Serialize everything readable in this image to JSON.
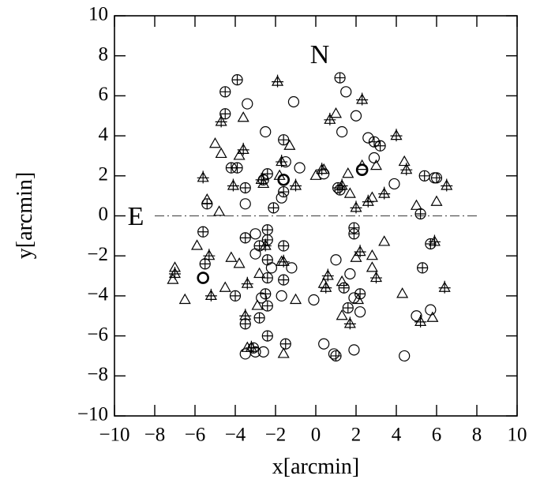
{
  "chart_data": {
    "type": "scatter",
    "x_label": "x[arcmin]",
    "y_label": "y[arcmin]",
    "annotations": [
      "N",
      "E"
    ],
    "xlim": [
      -10,
      10
    ],
    "ylim": [
      -10,
      10
    ],
    "xticks": [
      {
        "value": -10,
        "label": "−10"
      },
      {
        "value": -8,
        "label": "−8"
      },
      {
        "value": -6,
        "label": "−6"
      },
      {
        "value": -4,
        "label": "−4"
      },
      {
        "value": -2,
        "label": "−2"
      },
      0,
      2,
      4,
      6,
      8,
      10
    ],
    "yticks": [
      {
        "value": -10,
        "label": "−10"
      },
      {
        "value": -8,
        "label": "−8"
      },
      {
        "value": -6,
        "label": "−6"
      },
      {
        "value": -4,
        "label": "−4"
      },
      {
        "value": -2,
        "label": "−2"
      },
      0,
      2,
      4,
      6,
      8,
      10
    ],
    "grid": false,
    "reference_line": {
      "y": 0,
      "from": -8,
      "to": 8,
      "style": "dashdot",
      "color": "#555555"
    },
    "series": [
      {
        "marker": "circle-plus",
        "color": "#000000",
        "x": [
          -3.9,
          -4.5,
          1.2,
          -4.5,
          -1.6,
          -4.2,
          -3.9,
          -2.4,
          -2.6,
          -3.5,
          -1.6,
          1.2,
          1.1,
          2.9,
          -5.4,
          -2.1,
          -5.6,
          -3.5,
          -2.4,
          -2.4,
          -2.8,
          -1.6,
          -2.4,
          -2.4,
          -1.6,
          -2.5,
          -2.4,
          -4.0,
          -3.5,
          -2.8,
          -2.4,
          -1.5,
          -3.1,
          1.0,
          1.9,
          1.9,
          1.4,
          1.6,
          2.2,
          5.3,
          5.7,
          5.2,
          6.0,
          5.4,
          3.2,
          -5.5
        ],
        "y": [
          6.8,
          6.2,
          6.9,
          5.1,
          3.8,
          2.4,
          2.4,
          2.1,
          1.8,
          1.4,
          1.2,
          1.3,
          1.4,
          3.7,
          0.6,
          0.4,
          -0.8,
          -1.1,
          -0.7,
          -1.2,
          -1.5,
          -1.5,
          -2.2,
          -3.1,
          -3.2,
          -3.9,
          -4.5,
          -4.0,
          -5.4,
          -5.1,
          -6.0,
          -6.4,
          -6.6,
          -7.0,
          -0.9,
          -0.6,
          -3.6,
          -4.6,
          -3.9,
          -2.6,
          -1.4,
          0.1,
          1.9,
          2.0,
          3.5,
          -2.4
        ]
      },
      {
        "marker": "circle",
        "color": "#000000",
        "x": [
          -3.4,
          -1.1,
          1.5,
          2.0,
          1.3,
          2.6,
          -2.5,
          -0.8,
          -1.5,
          0.4,
          -1.7,
          -3.5,
          3.9,
          2.9,
          -3.0,
          -3.0,
          -2.2,
          -1.2,
          -2.7,
          -1.7,
          -3.0,
          -3.5,
          -2.6,
          0.4,
          0.9,
          1.9,
          -0.1,
          1.7,
          1.9,
          2.2,
          1.0,
          4.4,
          5.0,
          5.7,
          5.9
        ],
        "y": [
          5.6,
          5.7,
          6.2,
          5.0,
          4.2,
          3.9,
          4.2,
          2.4,
          2.7,
          2.1,
          0.9,
          0.6,
          1.6,
          2.9,
          -0.9,
          -1.9,
          -2.6,
          -2.6,
          -4.1,
          -4.0,
          -6.8,
          -6.9,
          -6.8,
          -6.4,
          -6.9,
          -6.7,
          -4.2,
          -2.9,
          -4.1,
          -4.8,
          -2.2,
          -7.0,
          -5.0,
          -4.7,
          1.9
        ]
      },
      {
        "marker": "circle-bold",
        "color": "#000000",
        "x": [
          -1.6,
          -5.6,
          2.3
        ],
        "y": [
          1.8,
          -3.1,
          2.3
        ]
      },
      {
        "marker": "triangle",
        "color": "#000000",
        "x": [
          -3.6,
          -5.0,
          -4.7,
          -3.8,
          -2.6,
          -1.3,
          -5.4,
          -4.8,
          -1.8,
          1.0,
          0.0,
          1.6,
          0.4,
          2.3,
          3.0,
          1.7,
          2.8,
          4.4,
          5.0,
          6.0,
          -4.2,
          -3.8,
          -5.9,
          -2.8,
          -4.5,
          -6.5,
          -7.1,
          -7.0,
          -2.9,
          -1.0,
          -1.7,
          -3.4,
          -1.6,
          0.4,
          1.3,
          2.0,
          2.8,
          2.8,
          3.4,
          1.3,
          4.3,
          5.8,
          2.1
        ],
        "y": [
          4.9,
          3.6,
          3.1,
          3.0,
          1.6,
          3.5,
          0.8,
          0.2,
          2.0,
          5.1,
          2.0,
          2.1,
          2.3,
          2.5,
          2.5,
          1.1,
          0.9,
          2.7,
          0.5,
          0.7,
          -2.1,
          -2.4,
          -1.5,
          -2.9,
          -3.6,
          -4.2,
          -3.2,
          -2.6,
          -4.5,
          -4.2,
          -2.3,
          -6.6,
          -6.9,
          -3.4,
          -3.3,
          -2.1,
          -2.0,
          -2.6,
          -1.3,
          -5.0,
          -3.9,
          -5.1,
          -4.2
        ]
      },
      {
        "marker": "triangle-plus",
        "color": "#000000",
        "x": [
          -1.9,
          2.3,
          0.7,
          4.0,
          -4.7,
          -3.6,
          -5.6,
          -4.1,
          -2.7,
          -1.7,
          -1.0,
          0.3,
          1.3,
          2.0,
          2.6,
          3.4,
          4.5,
          6.5,
          -5.3,
          -5.2,
          -7.0,
          -3.4,
          -3.5,
          -2.5,
          -1.6,
          0.6,
          0.5,
          1.7,
          2.2,
          3.0,
          5.2,
          5.9,
          6.4,
          -3.2
        ],
        "y": [
          6.7,
          5.8,
          4.8,
          4.0,
          4.7,
          3.3,
          1.9,
          1.5,
          1.8,
          2.7,
          1.5,
          2.3,
          1.5,
          0.4,
          0.7,
          1.1,
          2.3,
          1.5,
          -2.0,
          -4.0,
          -2.9,
          -3.4,
          -5.0,
          -1.5,
          -2.3,
          -3.0,
          -3.6,
          -5.4,
          -1.8,
          -3.1,
          -5.3,
          -1.3,
          -3.6,
          -6.6
        ]
      }
    ]
  }
}
